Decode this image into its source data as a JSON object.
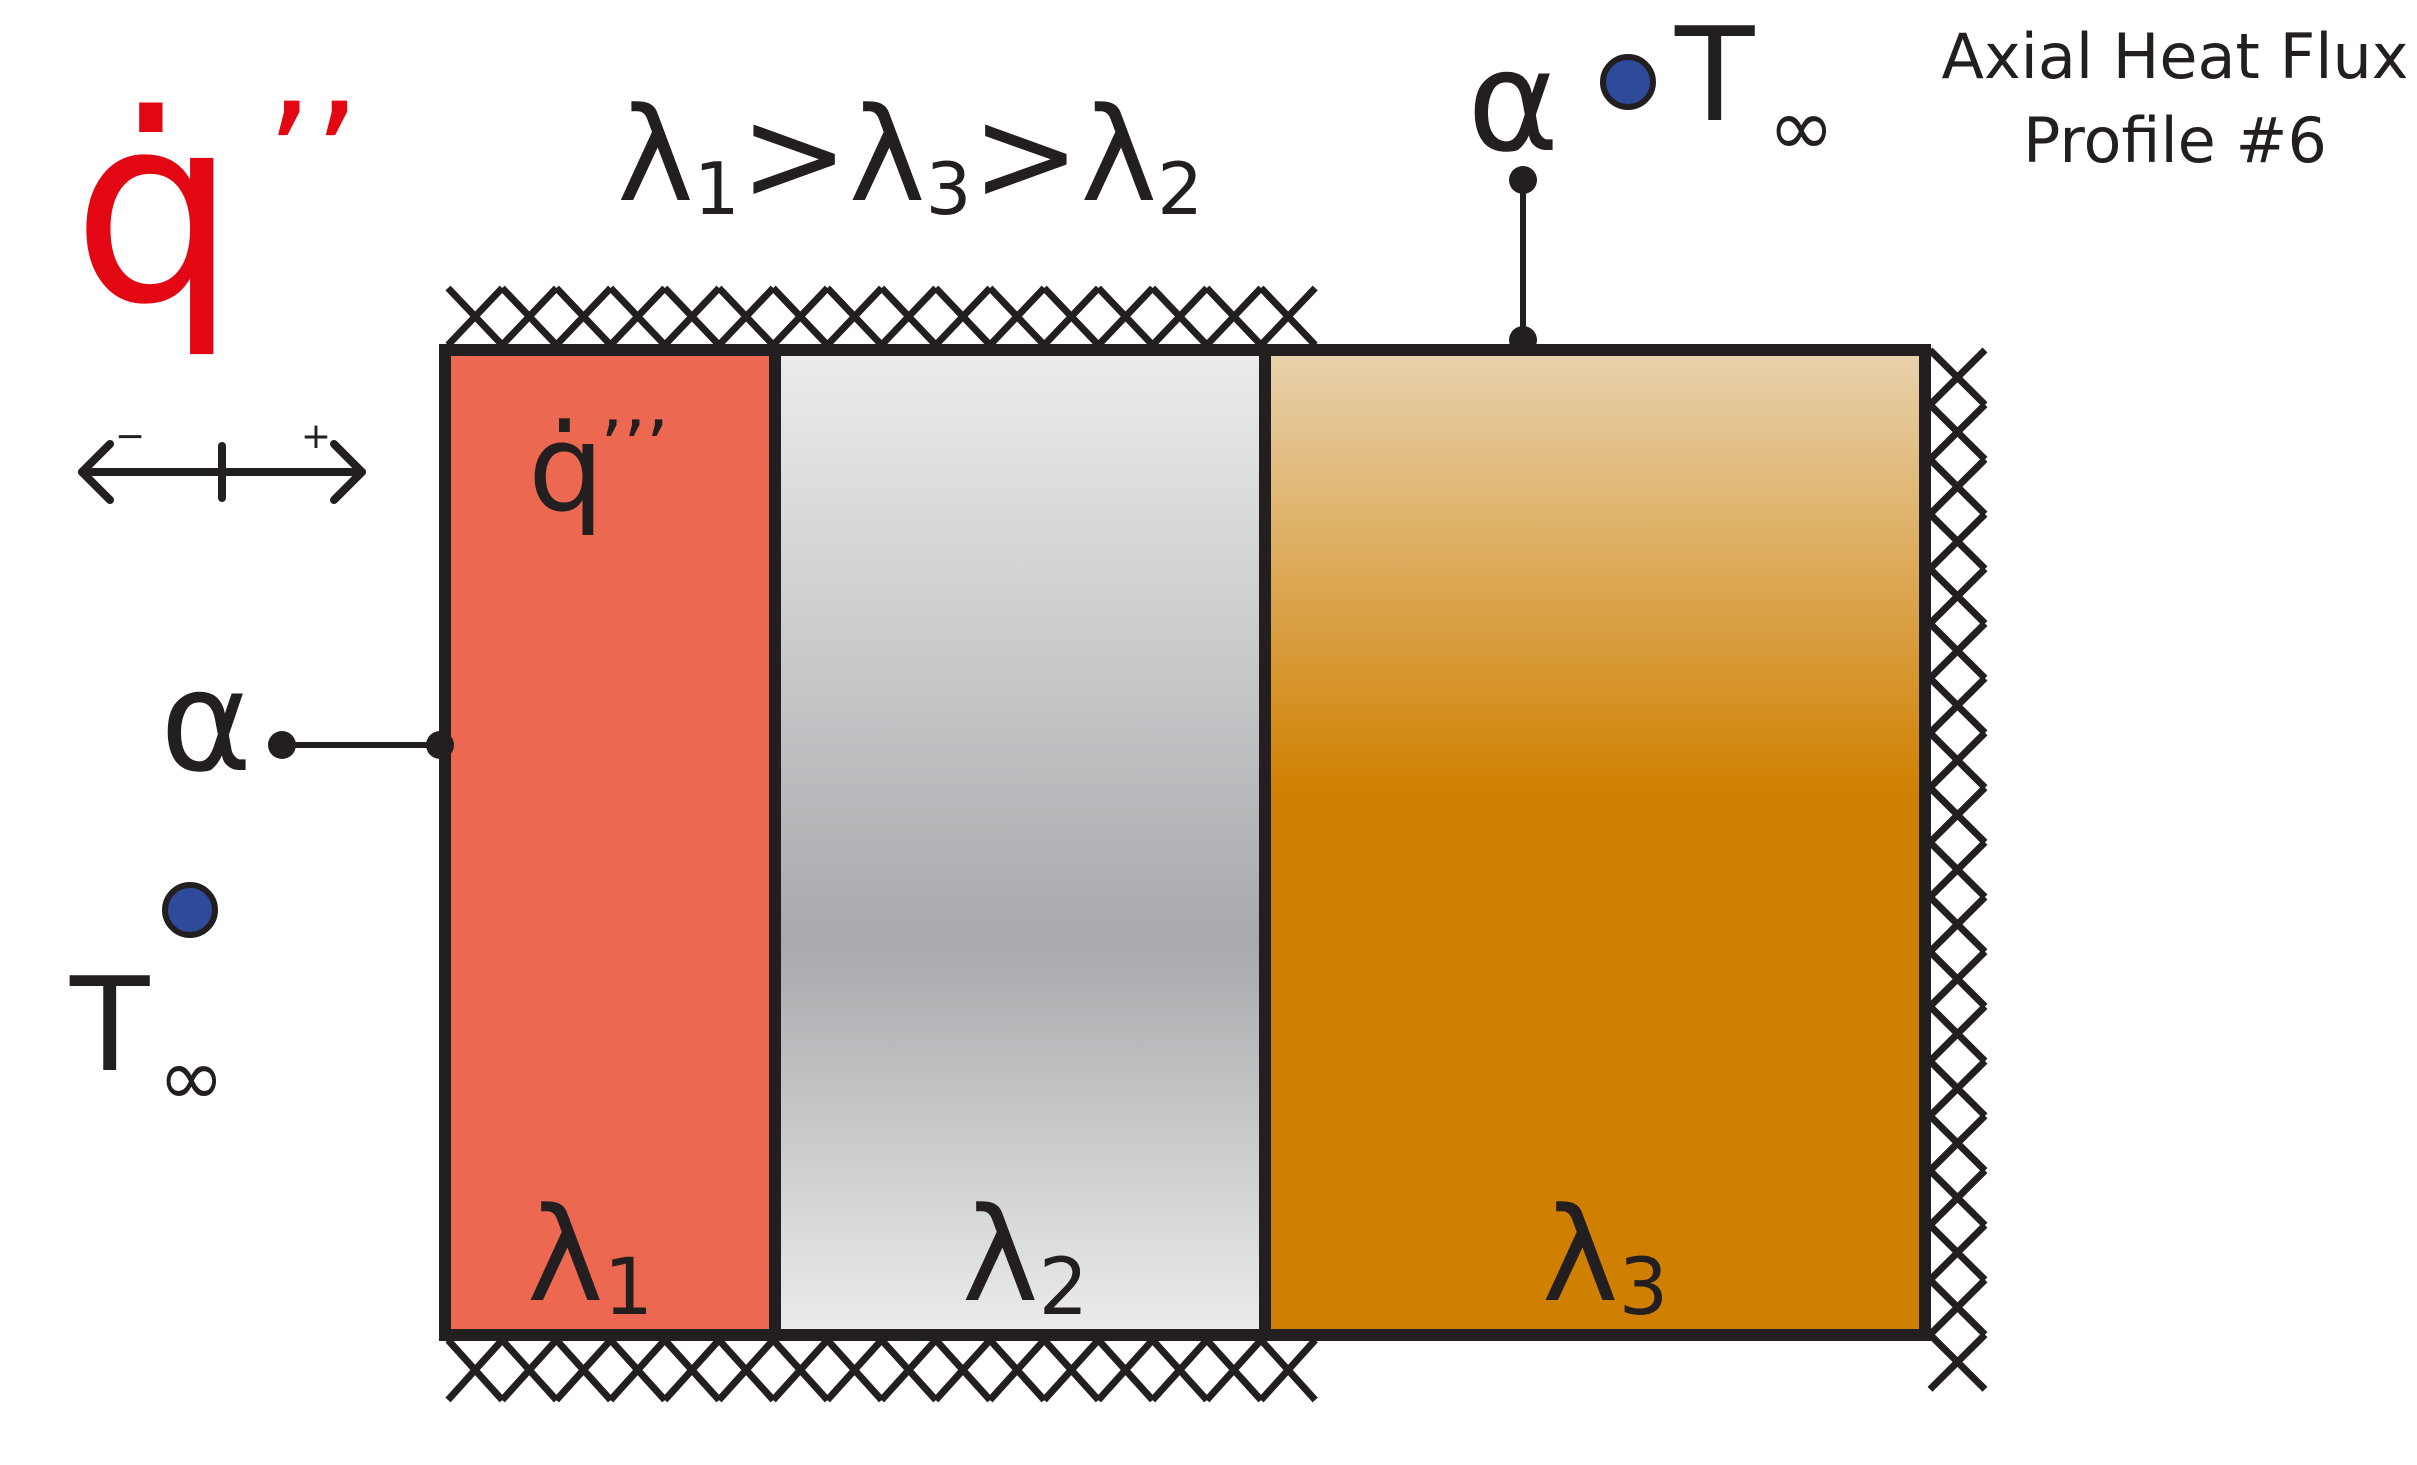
{
  "title": {
    "line1": "Axial Heat Flux",
    "line2": "Profile #6"
  },
  "heat_flux": {
    "symbol": "q̇",
    "primes": "’’",
    "color": "#e30613"
  },
  "direction_marker": {
    "minus": "−",
    "plus": "+"
  },
  "conductivity_order": {
    "lambda": "λ",
    "sub1": "1",
    "sub3": "3",
    "sub2": "2",
    "gt": ">"
  },
  "layers": [
    {
      "lambda": "λ",
      "sub": "1",
      "color": "#ec6851",
      "has_source": true
    },
    {
      "lambda": "λ",
      "sub": "2",
      "color": "#a7a9ac"
    },
    {
      "lambda": "λ",
      "sub": "3",
      "color": "#d08000"
    }
  ],
  "volumetric_source": {
    "symbol": "q̇",
    "primes": "’’’"
  },
  "left_boundary": {
    "alpha": "α",
    "T": "T",
    "inf": "∞"
  },
  "top_boundary": {
    "alpha": "α",
    "T": "T",
    "inf": "∞"
  },
  "colors": {
    "ink": "#231f20",
    "ambient_dot": "#2e4b9b",
    "layer1": "#ec6851",
    "layer2_light": "#e6e7e8",
    "layer2_dark": "#a7a9ac",
    "layer3_light": "#e8d2ae",
    "layer3_dark": "#d08000"
  }
}
